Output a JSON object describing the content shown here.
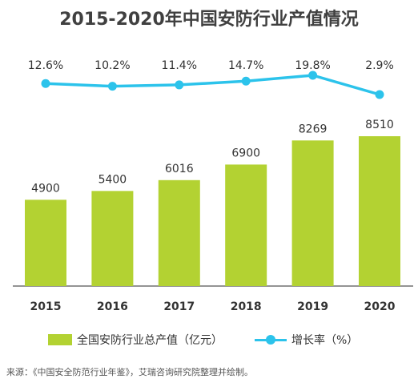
{
  "title": "2015-2020年中国安防行业产值情况",
  "legend": {
    "bar_label": "全国安防行业总产值（亿元）",
    "line_label": "增长率（%）"
  },
  "source": "来源：《中国安全防范行业年鉴》，艾瑞咨询研究院整理并绘制。",
  "colors": {
    "bar": "#b3d232",
    "line": "#2cc3eb",
    "axis": "#555555"
  },
  "chart_data": {
    "type": "bar",
    "categories": [
      "2015",
      "2016",
      "2017",
      "2018",
      "2019",
      "2020"
    ],
    "series": [
      {
        "name": "全国安防行业总产值（亿元）",
        "type": "bar",
        "values": [
          4900,
          5400,
          6016,
          6900,
          8269,
          8510
        ],
        "labels": [
          "4900",
          "5400",
          "6016",
          "6900",
          "8269",
          "8510"
        ]
      },
      {
        "name": "增长率（%）",
        "type": "line",
        "values": [
          12.6,
          10.2,
          11.4,
          14.7,
          19.8,
          2.9
        ],
        "labels": [
          "12.6%",
          "10.2%",
          "11.4%",
          "14.7%",
          "19.8%",
          "2.9%"
        ]
      }
    ]
  }
}
